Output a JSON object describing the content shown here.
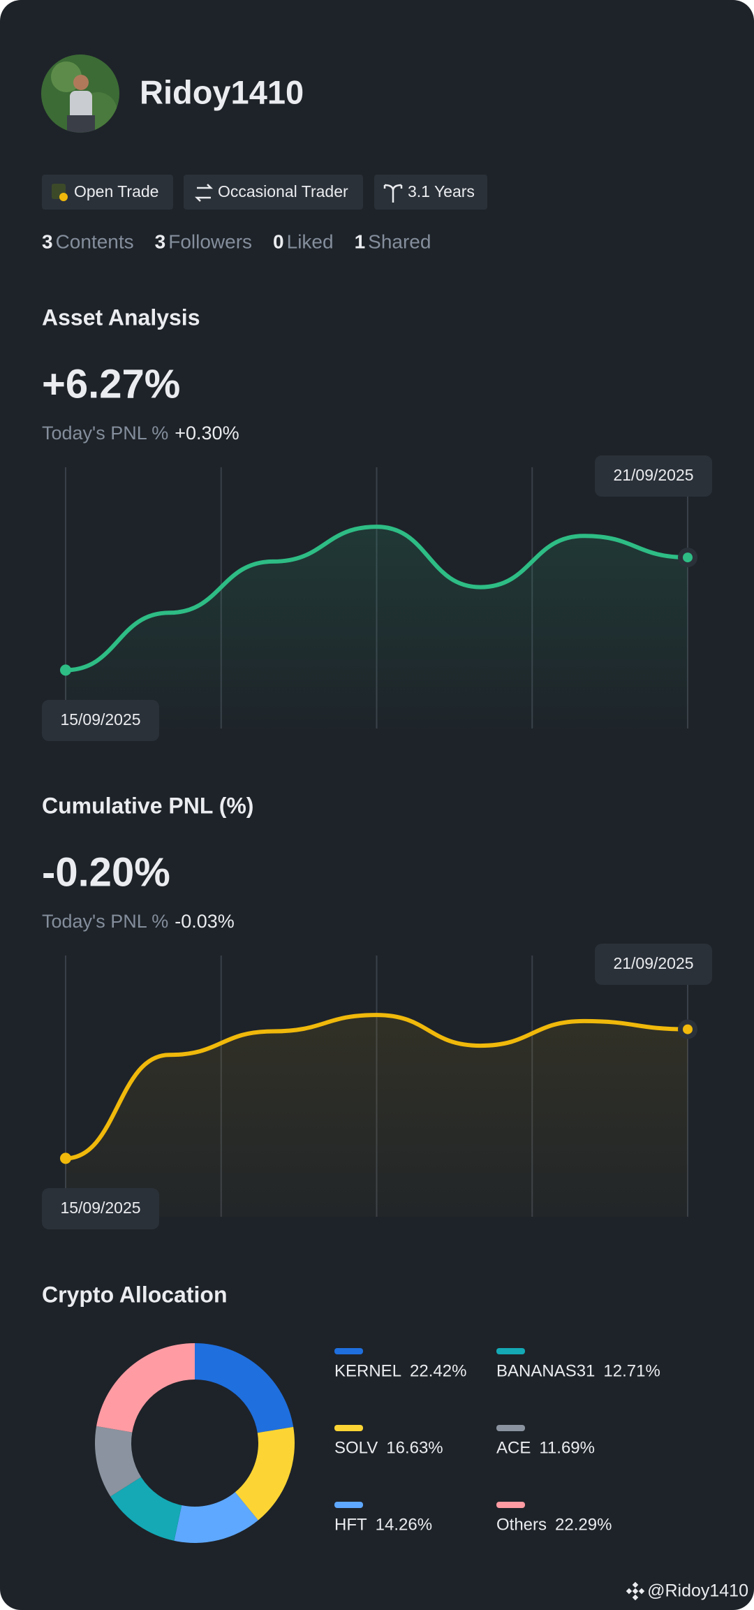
{
  "profile": {
    "name": "Ridoy1410",
    "tags": [
      "Open Trade",
      "Occasional Trader",
      "3.1 Years"
    ],
    "stats": [
      {
        "count": 3,
        "label": "Contents"
      },
      {
        "count": 3,
        "label": "Followers"
      },
      {
        "count": 0,
        "label": "Liked"
      },
      {
        "count": 1,
        "label": "Shared"
      }
    ]
  },
  "chart_data": [
    {
      "type": "line",
      "title": "Asset Analysis",
      "headline": "+6.27%",
      "today_label": "Today's PNL %",
      "today_value": "+0.30%",
      "categories": [
        "15/09/2025",
        null,
        null,
        null,
        null,
        null,
        "21/09/2025"
      ],
      "values": [
        57,
        113,
        163,
        197,
        138,
        188,
        167
      ],
      "ylim": [
        0,
        255
      ],
      "color": "#2ebd85"
    },
    {
      "type": "line",
      "title": "Cumulative PNL (%)",
      "headline": "-0.20%",
      "today_label": "Today's PNL %",
      "today_value": "-0.03%",
      "categories": [
        "15/09/2025",
        null,
        null,
        null,
        null,
        null,
        "21/09/2025"
      ],
      "values": [
        57,
        158,
        181,
        197,
        167,
        191,
        183
      ],
      "ylim": [
        0,
        255
      ],
      "color": "#f0b90b"
    },
    {
      "type": "donut",
      "title": "Crypto Allocation",
      "categories": [
        "KERNEL",
        "SOLV",
        "HFT",
        "BANANAS31",
        "ACE",
        "Others"
      ],
      "values": [
        22.42,
        16.63,
        14.26,
        12.71,
        11.69,
        22.29
      ],
      "value_labels": [
        "22.42%",
        "16.63%",
        "14.26%",
        "12.71%",
        "11.69%",
        "22.29%"
      ],
      "colors": [
        "#1f6fde",
        "#fcd535",
        "#5ea8ff",
        "#14a9b5",
        "#8a939f",
        "#ff9ba3"
      ]
    }
  ],
  "footer": "@Ridoy1410"
}
